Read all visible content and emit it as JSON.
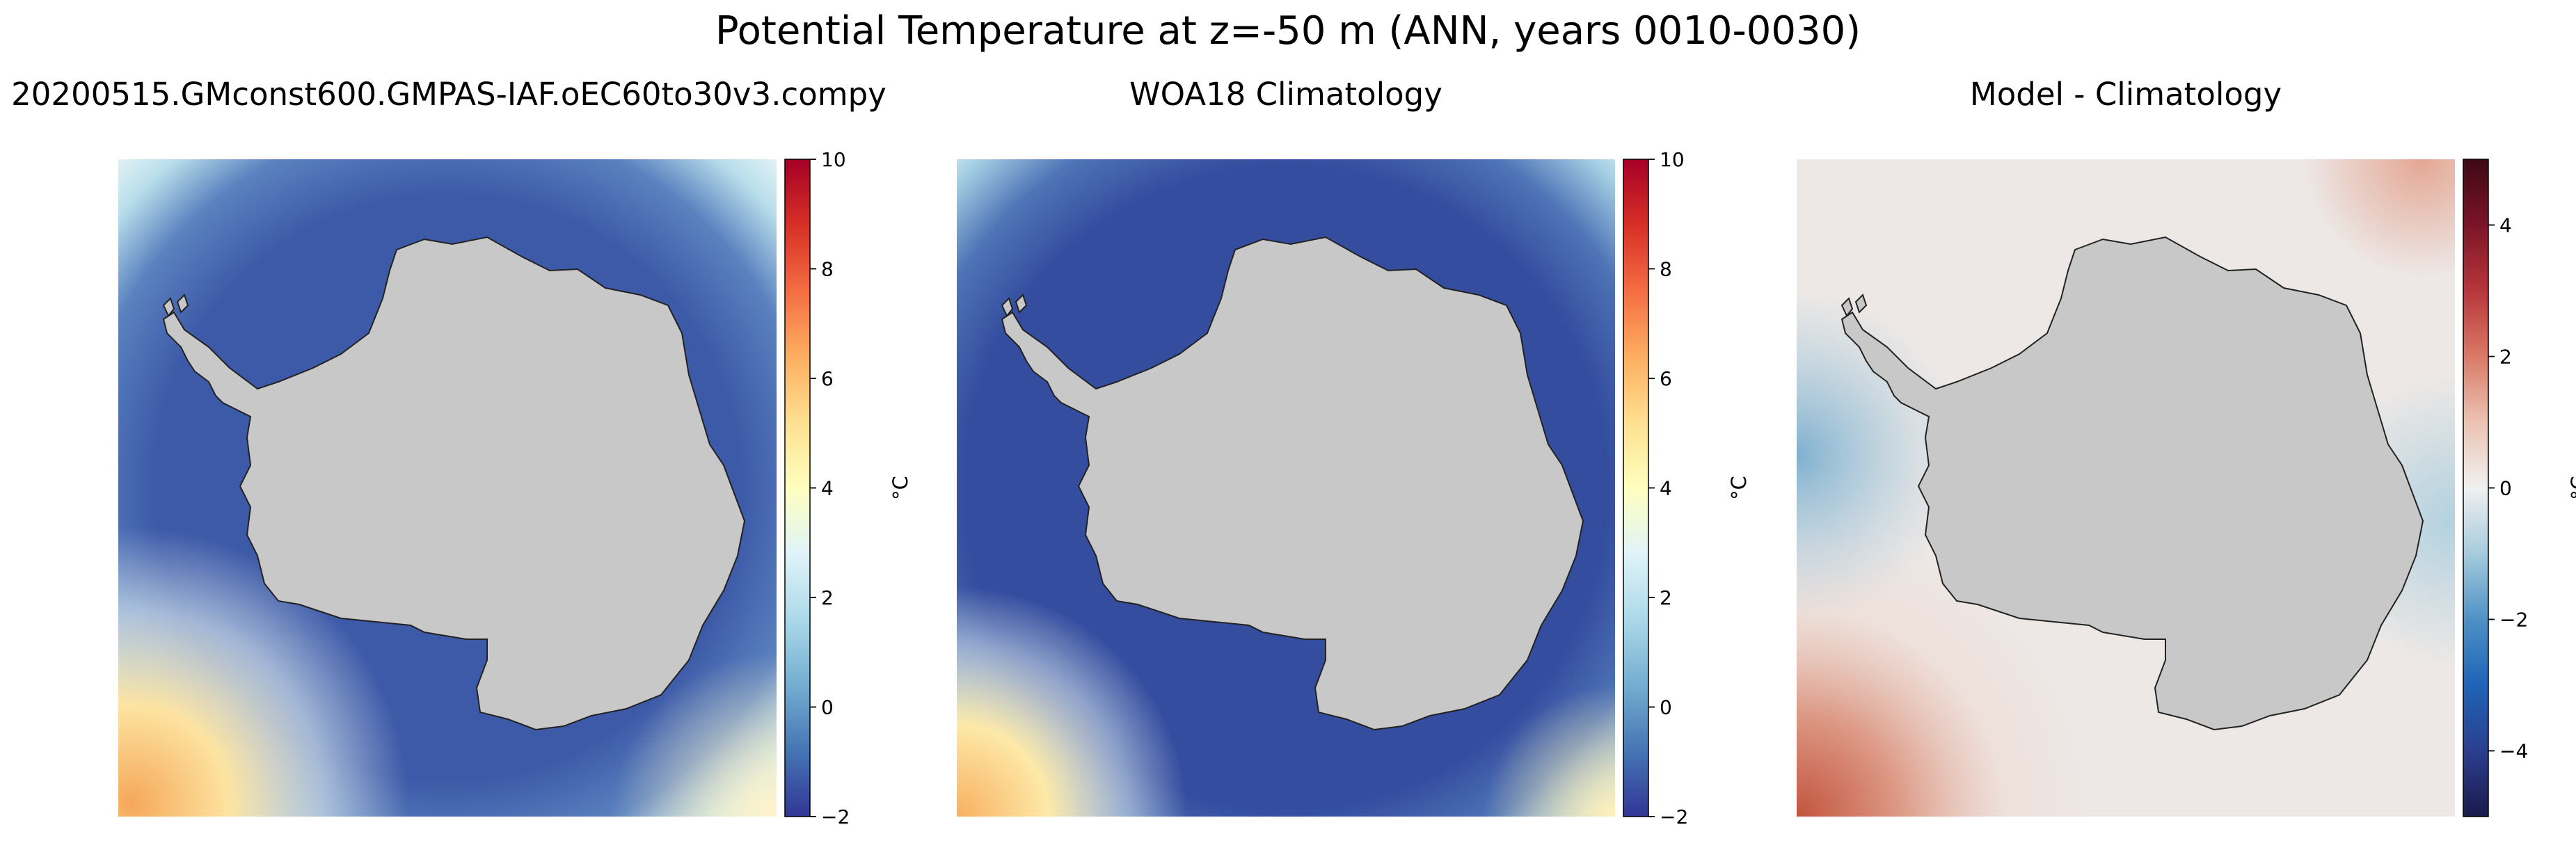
{
  "figure": {
    "title": "Potential Temperature at z=-50 m (ANN, years 0010-0030)"
  },
  "chart_data": [
    {
      "type": "heatmap",
      "title": "20200515.GMconst600.GMPAS-IAF.oEC60to30v3.compy",
      "colorbar": {
        "label": "°C",
        "range": [
          -2,
          10
        ],
        "ticks": [
          "−2",
          "0",
          "2",
          "4",
          "6",
          "8",
          "10"
        ],
        "tick_values": [
          -2,
          0,
          2,
          4,
          6,
          8,
          10
        ],
        "colormap": [
          "#313695",
          "#4575b4",
          "#74add1",
          "#abd9e9",
          "#e0f3f8",
          "#ffffbf",
          "#fee090",
          "#fdae61",
          "#f46d43",
          "#d73027",
          "#a50026"
        ]
      },
      "field": {
        "ocean_base": "#3d5aa8",
        "edge_warm": "#f5b460",
        "land": "#c8c8c8"
      }
    },
    {
      "type": "heatmap",
      "title": "WOA18 Climatology",
      "colorbar": {
        "label": "°C",
        "range": [
          -2,
          10
        ],
        "ticks": [
          "−2",
          "0",
          "2",
          "4",
          "6",
          "8",
          "10"
        ],
        "tick_values": [
          -2,
          0,
          2,
          4,
          6,
          8,
          10
        ],
        "colormap": [
          "#313695",
          "#4575b4",
          "#74add1",
          "#abd9e9",
          "#e0f3f8",
          "#ffffbf",
          "#fee090",
          "#fdae61",
          "#f46d43",
          "#d73027",
          "#a50026"
        ]
      },
      "field": {
        "ocean_base": "#344d9f",
        "edge_warm": "#f8c572",
        "land": "#c8c8c8"
      }
    },
    {
      "type": "heatmap",
      "title": "Model - Climatology",
      "colorbar": {
        "label": "°C",
        "range": [
          -5,
          5
        ],
        "ticks": [
          "−4",
          "−2",
          "0",
          "2",
          "4"
        ],
        "tick_values": [
          -4,
          -2,
          0,
          2,
          4
        ],
        "colormap": [
          "#1a1a4c",
          "#2b3f8e",
          "#1f64b8",
          "#4f91c4",
          "#a6cbdd",
          "#f0f0f0",
          "#ecc3b3",
          "#d97a67",
          "#b8363b",
          "#7b1428",
          "#3d0a14"
        ]
      },
      "field": {
        "ocean_base": "#ede8e6",
        "edge_warm": "#c96a55",
        "land": "#c8c8c8"
      }
    }
  ]
}
